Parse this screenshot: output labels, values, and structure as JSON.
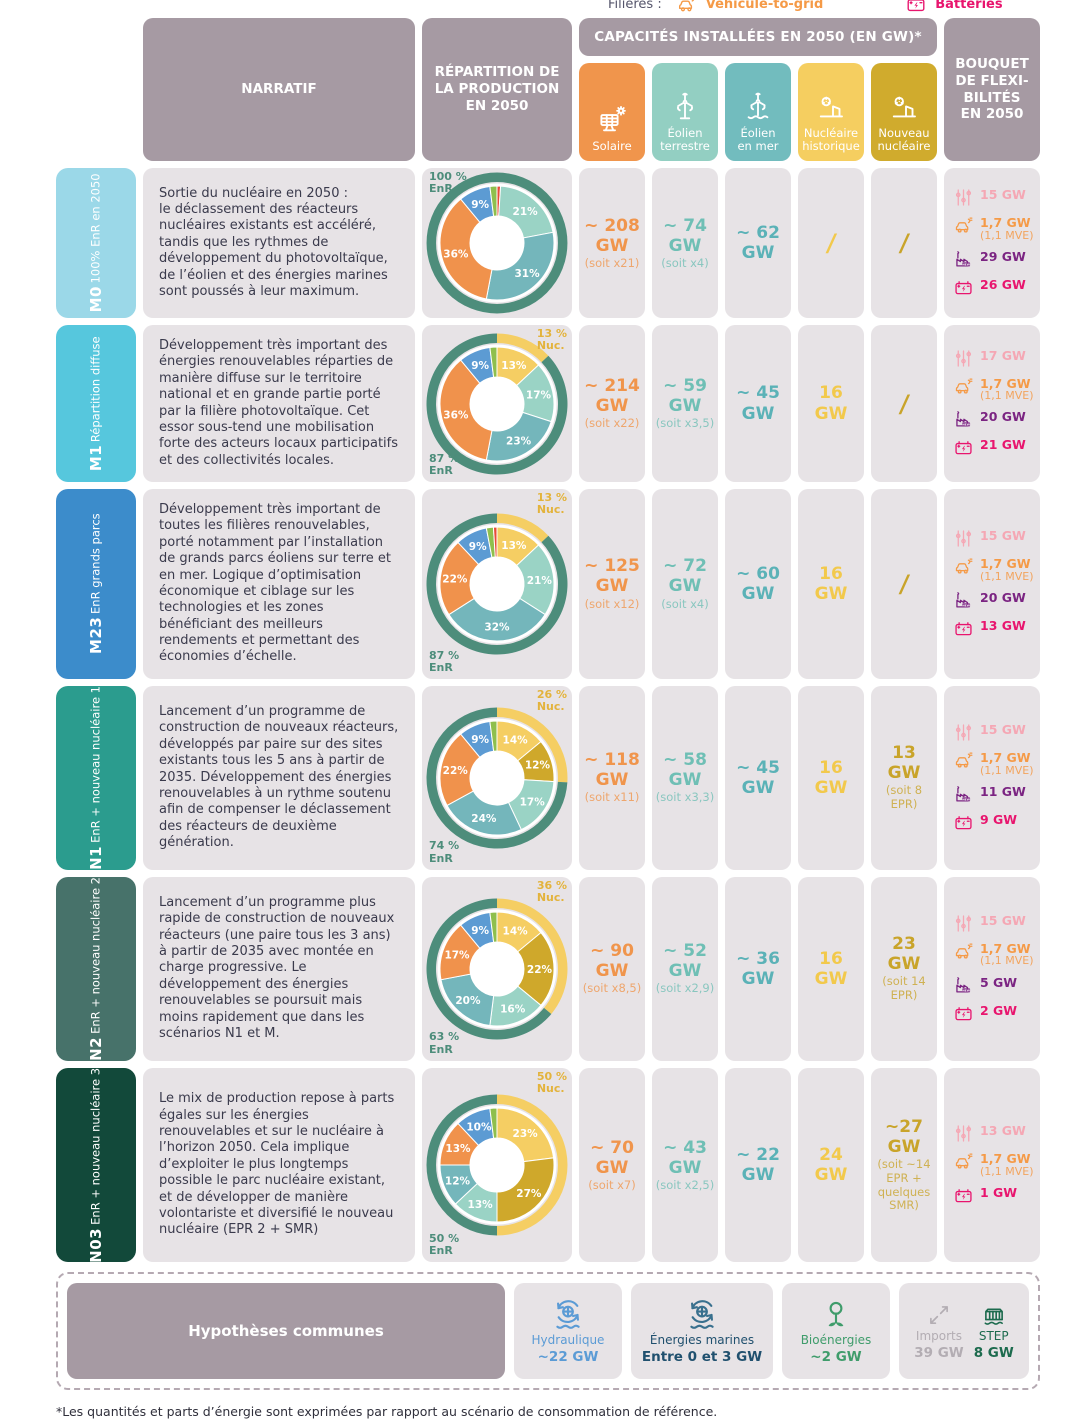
{
  "legend": {
    "label": "Filières :",
    "items": [
      {
        "icon": "v2g-car-icon",
        "label": "Véhicule-to-grid",
        "color": "#F59A47"
      },
      {
        "icon": "battery-icon",
        "label": "Batteries",
        "color": "#E8156E"
      }
    ]
  },
  "header": {
    "narratif": "NARRATIF",
    "repartition": "RÉPARTITION DE\nLA PRODUCTION\nEN 2050",
    "capacites": "CAPACITÉS INSTALLÉES EN 2050 (EN GW)*",
    "bouquet": "BOUQUET\nDE FLEXI-\nBILITÉS\nEN 2050",
    "columns": [
      {
        "id": "solaire",
        "label": "Solaire",
        "icon": "solar-panel-icon",
        "color": "#F0954C"
      },
      {
        "id": "eolien_terrestre",
        "label": "Éolien\nterrestre",
        "icon": "wind-turbine-icon",
        "color": "#93CFC2"
      },
      {
        "id": "eolien_mer",
        "label": "Éolien\nen mer",
        "icon": "offshore-wind-icon",
        "color": "#72BCBE"
      },
      {
        "id": "nucleaire_historique",
        "label": "Nucléaire\nhistorique",
        "icon": "nuclear-plant-icon",
        "color": "#F5CE60"
      },
      {
        "id": "nouveau_nucleaire",
        "label": "Nouveau\nnucléaire",
        "icon": "nuclear-plant-icon",
        "color": "#D0AB2D"
      }
    ]
  },
  "colors": {
    "ring_enr": "#4D8D7B",
    "ring_nuc": "#F5CE63",
    "donut_hole": "#FFFFFF",
    "seg": {
      "solaire": "#F0924C",
      "eolien_terrestre": "#9AD3C5",
      "eolien_mer": "#74B6BB",
      "hydraulique": "#5C9BD3",
      "bioenergies": "#8FBF4D",
      "thermique": "#E84B38",
      "nucleaire_historique": "#F5CE63",
      "nouveau_nucleaire": "#CFA82B"
    },
    "label_enr": "#4D8D7B",
    "label_nuc": "#E3B33C",
    "cap_solaire": "#F0954C",
    "cap_eolien_terrestre": "#6FBFB5",
    "cap_eolien_mer": "#5BB2B7",
    "cap_nucleaire_historique": "#F2C94C",
    "cap_nouveau_nucleaire": "#C9A42A"
  },
  "rows": [
    {
      "code": "M0",
      "subtitle": "100% EnR en 2050",
      "color": "#9BD8E8",
      "narrative": "Sortie du nucléaire en 2050 :\nle déclassement des réacteurs nucléaires existants est accéléré, tandis que les rythmes de développement du photovoltaïque, de l’éolien et des énergies marines sont poussés à leur maximum.",
      "donut": {
        "nuc_share": 0,
        "enr_label": "100 %\nEnR",
        "nuc_label": null,
        "enr_pos": "top",
        "segments": [
          [
            "thermique",
            1
          ],
          [
            "eolien_terrestre",
            21
          ],
          [
            "eolien_mer",
            31
          ],
          [
            "solaire",
            36
          ],
          [
            "hydraulique",
            9
          ],
          [
            "bioenergies",
            2
          ]
        ]
      },
      "capacities": {
        "solaire": {
          "value": "~ 208 GW",
          "note": "(soit x21)"
        },
        "eolien_terrestre": {
          "value": "~ 74 GW",
          "note": "(soit x4)"
        },
        "eolien_mer": {
          "value": "~ 62 GW"
        },
        "nucleaire_historique": {
          "value": "/"
        },
        "nouveau_nucleaire": {
          "value": "/"
        }
      },
      "flex": [
        {
          "icon": "sliders-icon",
          "text": "15 GW",
          "color": "#F5A7B4"
        },
        {
          "icon": "v2g-car-icon",
          "text": "1,7 GW",
          "note": "(1,1 MVE)",
          "color": "#F59A47"
        },
        {
          "icon": "factory-new-icon",
          "text": "29 GW",
          "color": "#7B2482"
        },
        {
          "icon": "battery-icon",
          "text": "26 GW",
          "color": "#E8156E"
        }
      ]
    },
    {
      "code": "M1",
      "subtitle": "Répartition diffuse",
      "color": "#56C7DD",
      "narrative": "Développement très important des énergies renouvelables réparties de manière diffuse sur le territoire national et en grande partie porté par la filière photovoltaïque. Cet essor sous-tend une mobilisation forte des acteurs locaux participatifs et des collectivités locales.",
      "donut": {
        "nuc_share": 13,
        "enr_label": "87 %\nEnR",
        "nuc_label": "13 %\nNuc.",
        "enr_pos": "bottom",
        "segments": [
          [
            "nucleaire_historique",
            13
          ],
          [
            "eolien_terrestre",
            17
          ],
          [
            "eolien_mer",
            23
          ],
          [
            "solaire",
            36
          ],
          [
            "hydraulique",
            9
          ],
          [
            "bioenergies",
            2
          ]
        ]
      },
      "capacities": {
        "solaire": {
          "value": "~ 214 GW",
          "note": "(soit x22)"
        },
        "eolien_terrestre": {
          "value": "~ 59 GW",
          "note": "(soit x3,5)"
        },
        "eolien_mer": {
          "value": "~ 45 GW"
        },
        "nucleaire_historique": {
          "value": "16 GW"
        },
        "nouveau_nucleaire": {
          "value": "/"
        }
      },
      "flex": [
        {
          "icon": "sliders-icon",
          "text": "17 GW",
          "color": "#F5A7B4"
        },
        {
          "icon": "v2g-car-icon",
          "text": "1,7 GW",
          "note": "(1,1 MVE)",
          "color": "#F59A47"
        },
        {
          "icon": "factory-new-icon",
          "text": "20 GW",
          "color": "#7B2482"
        },
        {
          "icon": "battery-icon",
          "text": "21 GW",
          "color": "#E8156E"
        }
      ]
    },
    {
      "code": "M23",
      "subtitle": "EnR grands parcs",
      "color": "#3C8CCB",
      "narrative": "Développement très important de toutes les filières renouvelables, porté notamment par l’installation de grands parcs éoliens sur terre et en mer. Logique d’optimisation économique et ciblage sur les technologies et les zones bénéficiant des meilleurs rendements et permettant des économies d’échelle.",
      "donut": {
        "nuc_share": 13,
        "enr_label": "87 %\nEnR",
        "nuc_label": "13 %\nNuc.",
        "enr_pos": "bottom",
        "segments": [
          [
            "nucleaire_historique",
            13
          ],
          [
            "eolien_terrestre",
            21
          ],
          [
            "eolien_mer",
            32
          ],
          [
            "solaire",
            22
          ],
          [
            "hydraulique",
            9
          ],
          [
            "bioenergies",
            2
          ],
          [
            "thermique",
            1
          ]
        ]
      },
      "capacities": {
        "solaire": {
          "value": "~ 125 GW",
          "note": "(soit x12)"
        },
        "eolien_terrestre": {
          "value": "~ 72 GW",
          "note": "(soit x4)"
        },
        "eolien_mer": {
          "value": "~ 60 GW"
        },
        "nucleaire_historique": {
          "value": "16 GW"
        },
        "nouveau_nucleaire": {
          "value": "/"
        }
      },
      "flex": [
        {
          "icon": "sliders-icon",
          "text": "15 GW",
          "color": "#F5A7B4"
        },
        {
          "icon": "v2g-car-icon",
          "text": "1,7 GW",
          "note": "(1,1 MVE)",
          "color": "#F59A47"
        },
        {
          "icon": "factory-new-icon",
          "text": "20 GW",
          "color": "#7B2482"
        },
        {
          "icon": "battery-icon",
          "text": "13 GW",
          "color": "#E8156E"
        }
      ]
    },
    {
      "code": "N1",
      "subtitle": "EnR + nouveau nucléaire 1",
      "color": "#2B9C8E",
      "narrative": "Lancement d’un programme de construction de nouveaux réacteurs, développés par paire sur des sites existants tous les 5 ans à partir de 2035. Développement des énergies renouvelables à un rythme soutenu afin de compenser le déclassement des réacteurs de deuxième génération.",
      "donut": {
        "nuc_share": 26,
        "enr_label": "74 %\nEnR",
        "nuc_label": "26 %\nNuc.",
        "enr_pos": "bottom",
        "segments": [
          [
            "nucleaire_historique",
            14
          ],
          [
            "nouveau_nucleaire",
            12
          ],
          [
            "eolien_terrestre",
            17
          ],
          [
            "eolien_mer",
            24
          ],
          [
            "solaire",
            22
          ],
          [
            "hydraulique",
            9
          ],
          [
            "bioenergies",
            2
          ]
        ]
      },
      "capacities": {
        "solaire": {
          "value": "~ 118 GW",
          "note": "(soit x11)"
        },
        "eolien_terrestre": {
          "value": "~ 58 GW",
          "note": "(soit x3,3)"
        },
        "eolien_mer": {
          "value": "~ 45 GW"
        },
        "nucleaire_historique": {
          "value": "16 GW"
        },
        "nouveau_nucleaire": {
          "value": "13 GW",
          "note": "(soit 8 EPR)"
        }
      },
      "flex": [
        {
          "icon": "sliders-icon",
          "text": "15 GW",
          "color": "#F5A7B4"
        },
        {
          "icon": "v2g-car-icon",
          "text": "1,7 GW",
          "note": "(1,1 MVE)",
          "color": "#F59A47"
        },
        {
          "icon": "factory-new-icon",
          "text": "11 GW",
          "color": "#7B2482"
        },
        {
          "icon": "battery-icon",
          "text": "9 GW",
          "color": "#E8156E"
        }
      ]
    },
    {
      "code": "N2",
      "subtitle": "EnR + nouveau nucléaire 2",
      "color": "#47726A",
      "narrative": "Lancement d’un programme plus rapide de construction de nouveaux réacteurs (une paire tous les 3 ans) à partir de 2035 avec montée en charge progressive. Le développement des énergies renouvelables se poursuit mais moins rapidement que dans les scénarios N1 et M.",
      "donut": {
        "nuc_share": 36,
        "enr_label": "63 %\nEnR",
        "nuc_label": "36 %\nNuc.",
        "enr_pos": "bottom",
        "segments": [
          [
            "nucleaire_historique",
            14
          ],
          [
            "nouveau_nucleaire",
            22
          ],
          [
            "eolien_terrestre",
            16
          ],
          [
            "eolien_mer",
            20
          ],
          [
            "solaire",
            17
          ],
          [
            "hydraulique",
            9
          ],
          [
            "bioenergies",
            2
          ]
        ]
      },
      "capacities": {
        "solaire": {
          "value": "~ 90 GW",
          "note": "(soit x8,5)"
        },
        "eolien_terrestre": {
          "value": "~ 52 GW",
          "note": "(soit x2,9)"
        },
        "eolien_mer": {
          "value": "~ 36 GW"
        },
        "nucleaire_historique": {
          "value": "16 GW"
        },
        "nouveau_nucleaire": {
          "value": "23 GW",
          "note": "(soit 14 EPR)"
        }
      },
      "flex": [
        {
          "icon": "sliders-icon",
          "text": "15 GW",
          "color": "#F5A7B4"
        },
        {
          "icon": "v2g-car-icon",
          "text": "1,7 GW",
          "note": "(1,1 MVE)",
          "color": "#F59A47"
        },
        {
          "icon": "factory-new-icon",
          "text": "5 GW",
          "color": "#7B2482"
        },
        {
          "icon": "battery-icon",
          "text": "2 GW",
          "color": "#E8156E"
        }
      ]
    },
    {
      "code": "N03",
      "subtitle": "EnR + nouveau nucléaire 3",
      "color": "#12493A",
      "narrative": "Le mix de production repose à parts égales sur les énergies renouvelables et sur le nucléaire à l’horizon 2050. Cela implique d’exploiter le plus longtemps possible le parc nucléaire existant, et de développer de manière volontariste et diversifié le nouveau nucléaire (EPR 2 + SMR)",
      "donut": {
        "nuc_share": 50,
        "enr_label": "50 %\nEnR",
        "nuc_label": "50 %\nNuc.",
        "enr_pos": "bottom",
        "segments": [
          [
            "nucleaire_historique",
            23
          ],
          [
            "nouveau_nucleaire",
            27
          ],
          [
            "eolien_terrestre",
            13
          ],
          [
            "eolien_mer",
            12
          ],
          [
            "solaire",
            13
          ],
          [
            "hydraulique",
            10
          ],
          [
            "bioenergies",
            2
          ]
        ]
      },
      "capacities": {
        "solaire": {
          "value": "~ 70 GW",
          "note": "(soit x7)"
        },
        "eolien_terrestre": {
          "value": "~ 43 GW",
          "note": "(soit x2,5)"
        },
        "eolien_mer": {
          "value": "~ 22 GW"
        },
        "nucleaire_historique": {
          "value": "24 GW"
        },
        "nouveau_nucleaire": {
          "value": "~27 GW",
          "note": "(soit ~14 EPR + quelques SMR)"
        }
      },
      "flex": [
        {
          "icon": "sliders-icon",
          "text": "13 GW",
          "color": "#F5A7B4"
        },
        {
          "icon": "v2g-car-icon",
          "text": "1,7 GW",
          "note": "(1,1 MVE)",
          "color": "#F59A47"
        },
        {
          "icon": "battery-icon",
          "text": "1 GW",
          "color": "#E8156E"
        }
      ]
    }
  ],
  "hypotheses": {
    "title": "Hypothèses communes",
    "hydraulique": {
      "icon": "hydro-wheel-icon",
      "label": "Hydraulique",
      "value": "~22 GW",
      "color": "#5B9BD5"
    },
    "marines": {
      "icon": "marine-energy-icon",
      "label": "Énergies marines",
      "value": "Entre 0 et 3 GW",
      "color": "#20506E"
    },
    "bioenergies": {
      "icon": "bioenergy-icon",
      "label": "Bioénergies",
      "value": "~2 GW",
      "color": "#3F9C6B"
    },
    "imports": {
      "icon": "imports-icon",
      "label": "Imports",
      "value": "39 GW",
      "color": "#B3ADB3"
    },
    "step": {
      "icon": "step-dam-icon",
      "label": "STEP",
      "value": "8 GW",
      "color": "#1D6B4E"
    }
  },
  "footnote": "*Les quantités et parts d’énergie sont exprimées par rapport au scénario de consommation de référence."
}
